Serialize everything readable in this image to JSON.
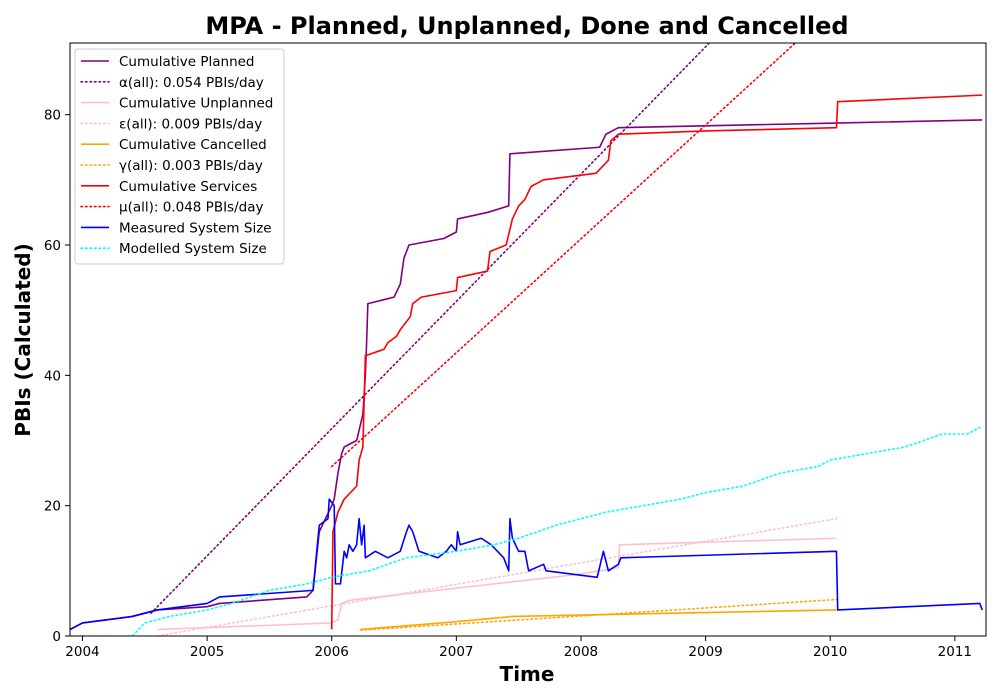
{
  "chart_data": {
    "type": "line",
    "title": "MPA - Planned, Unplanned, Done  and Cancelled",
    "xlabel": "Time",
    "ylabel": "PBIs (Calculated)",
    "xlim": [
      2003.9,
      2011.25
    ],
    "ylim": [
      0,
      91
    ],
    "x_ticks": [
      {
        "value": 2004,
        "label": "2004"
      },
      {
        "value": 2005,
        "label": "2005"
      },
      {
        "value": 2006,
        "label": "2006"
      },
      {
        "value": 2007,
        "label": "2007"
      },
      {
        "value": 2008,
        "label": "2008"
      },
      {
        "value": 2009,
        "label": "2009"
      },
      {
        "value": 2010,
        "label": "2010"
      },
      {
        "value": 2011,
        "label": "2011"
      }
    ],
    "y_ticks": [
      {
        "value": 0,
        "label": "0"
      },
      {
        "value": 20,
        "label": "20"
      },
      {
        "value": 40,
        "label": "40"
      },
      {
        "value": 60,
        "label": "60"
      },
      {
        "value": 80,
        "label": "80"
      }
    ],
    "grid": false,
    "legend_position": "top-left",
    "series": [
      {
        "name": "Cumulative Planned",
        "color": "#800080",
        "style": "solid",
        "points": [
          [
            2003.9,
            1
          ],
          [
            2004.0,
            2
          ],
          [
            2004.4,
            3
          ],
          [
            2004.6,
            4
          ],
          [
            2005.0,
            4.5
          ],
          [
            2005.1,
            5
          ],
          [
            2005.8,
            6
          ],
          [
            2005.85,
            7
          ],
          [
            2005.9,
            16
          ],
          [
            2005.95,
            18
          ],
          [
            2006.0,
            20
          ],
          [
            2006.02,
            21
          ],
          [
            2006.05,
            25
          ],
          [
            2006.08,
            28
          ],
          [
            2006.1,
            29
          ],
          [
            2006.2,
            30
          ],
          [
            2006.25,
            34
          ],
          [
            2006.27,
            40
          ],
          [
            2006.28,
            45
          ],
          [
            2006.29,
            51
          ],
          [
            2006.5,
            52
          ],
          [
            2006.55,
            54
          ],
          [
            2006.58,
            58
          ],
          [
            2006.62,
            60
          ],
          [
            2006.9,
            61
          ],
          [
            2007.0,
            62
          ],
          [
            2007.01,
            64
          ],
          [
            2007.25,
            65
          ],
          [
            2007.42,
            66
          ],
          [
            2007.43,
            74
          ],
          [
            2008.15,
            75
          ],
          [
            2008.2,
            77
          ],
          [
            2008.3,
            78
          ],
          [
            2010.0,
            78.7
          ],
          [
            2011.22,
            79.2
          ]
        ]
      },
      {
        "name": "α(all): 0.054 PBIs/day",
        "color": "#800080",
        "style": "dotted",
        "points": [
          [
            2004.55,
            3.5
          ],
          [
            2009.03,
            91
          ]
        ]
      },
      {
        "name": "Cumulative Unplanned",
        "color": "#ffc0cb",
        "style": "solid",
        "points": [
          [
            2004.6,
            1
          ],
          [
            2006.0,
            2
          ],
          [
            2006.05,
            2.5
          ],
          [
            2006.08,
            5
          ],
          [
            2006.15,
            5.5
          ],
          [
            2008.0,
            9.5
          ],
          [
            2008.3,
            10.5
          ],
          [
            2008.31,
            14
          ],
          [
            2010.05,
            15
          ]
        ]
      },
      {
        "name": "ε(all): 0.009 PBIs/day",
        "color": "#ffc0cb",
        "style": "dotted",
        "points": [
          [
            2004.6,
            0
          ],
          [
            2010.05,
            18
          ]
        ]
      },
      {
        "name": "Cumulative Cancelled",
        "color": "#ffa500",
        "style": "solid",
        "points": [
          [
            2006.23,
            1
          ],
          [
            2007.0,
            2.2
          ],
          [
            2007.45,
            3
          ],
          [
            2010.05,
            4
          ]
        ]
      },
      {
        "name": "γ(all): 0.003 PBIs/day",
        "color": "#ffa500",
        "style": "dotted",
        "points": [
          [
            2006.23,
            0.9
          ],
          [
            2010.05,
            5.6
          ]
        ]
      },
      {
        "name": "Cumulative Services",
        "color": "#ff0000",
        "style": "solid",
        "points": [
          [
            2006.0,
            1
          ],
          [
            2006.01,
            16
          ],
          [
            2006.05,
            19
          ],
          [
            2006.1,
            21
          ],
          [
            2006.2,
            23
          ],
          [
            2006.22,
            27
          ],
          [
            2006.25,
            29
          ],
          [
            2006.27,
            43
          ],
          [
            2006.42,
            44
          ],
          [
            2006.45,
            45
          ],
          [
            2006.52,
            46
          ],
          [
            2006.55,
            47
          ],
          [
            2006.63,
            49
          ],
          [
            2006.65,
            51
          ],
          [
            2006.72,
            52
          ],
          [
            2007.0,
            53
          ],
          [
            2007.01,
            55
          ],
          [
            2007.25,
            56
          ],
          [
            2007.27,
            59
          ],
          [
            2007.4,
            60
          ],
          [
            2007.45,
            64
          ],
          [
            2007.5,
            66
          ],
          [
            2007.55,
            67
          ],
          [
            2007.6,
            69
          ],
          [
            2007.7,
            70
          ],
          [
            2008.12,
            71
          ],
          [
            2008.22,
            73
          ],
          [
            2008.24,
            76
          ],
          [
            2008.3,
            77
          ],
          [
            2009.0,
            77.5
          ],
          [
            2010.05,
            78
          ],
          [
            2010.06,
            82
          ],
          [
            2011.22,
            83
          ]
        ]
      },
      {
        "name": "μ(all): 0.048 PBIs/day",
        "color": "#ff0000",
        "style": "dotted",
        "points": [
          [
            2006.0,
            26
          ],
          [
            2009.72,
            91
          ]
        ]
      },
      {
        "name": "Measured System Size",
        "color": "#0000ff",
        "style": "solid",
        "points": [
          [
            2003.9,
            1
          ],
          [
            2004.0,
            2
          ],
          [
            2004.4,
            3
          ],
          [
            2004.6,
            4
          ],
          [
            2005.0,
            5
          ],
          [
            2005.1,
            6
          ],
          [
            2005.85,
            7
          ],
          [
            2005.9,
            17
          ],
          [
            2005.97,
            18
          ],
          [
            2005.98,
            21
          ],
          [
            2006.02,
            20
          ],
          [
            2006.03,
            8
          ],
          [
            2006.07,
            8
          ],
          [
            2006.1,
            13
          ],
          [
            2006.12,
            12
          ],
          [
            2006.14,
            14
          ],
          [
            2006.17,
            13
          ],
          [
            2006.2,
            14
          ],
          [
            2006.22,
            18
          ],
          [
            2006.24,
            14
          ],
          [
            2006.26,
            17
          ],
          [
            2006.27,
            12
          ],
          [
            2006.35,
            13
          ],
          [
            2006.45,
            12
          ],
          [
            2006.55,
            13
          ],
          [
            2006.6,
            16
          ],
          [
            2006.62,
            17
          ],
          [
            2006.65,
            16
          ],
          [
            2006.7,
            13
          ],
          [
            2006.85,
            12
          ],
          [
            2006.92,
            13
          ],
          [
            2006.96,
            14
          ],
          [
            2007.0,
            13
          ],
          [
            2007.01,
            16
          ],
          [
            2007.03,
            14
          ],
          [
            2007.2,
            15
          ],
          [
            2007.28,
            14
          ],
          [
            2007.38,
            12
          ],
          [
            2007.42,
            10
          ],
          [
            2007.43,
            18
          ],
          [
            2007.45,
            15
          ],
          [
            2007.5,
            13
          ],
          [
            2007.55,
            13
          ],
          [
            2007.58,
            10
          ],
          [
            2007.7,
            11
          ],
          [
            2007.72,
            10
          ],
          [
            2008.13,
            9
          ],
          [
            2008.18,
            13
          ],
          [
            2008.22,
            10
          ],
          [
            2008.3,
            11
          ],
          [
            2008.32,
            12
          ],
          [
            2010.05,
            13
          ],
          [
            2010.06,
            4
          ],
          [
            2011.2,
            5
          ],
          [
            2011.22,
            4
          ]
        ]
      },
      {
        "name": "Modelled System Size",
        "color": "#00ffff",
        "style": "dotted",
        "points": [
          [
            2003.9,
            0
          ],
          [
            2004.4,
            0
          ],
          [
            2004.5,
            2
          ],
          [
            2004.7,
            3
          ],
          [
            2005.0,
            4
          ],
          [
            2005.2,
            5
          ],
          [
            2005.5,
            7
          ],
          [
            2005.8,
            8
          ],
          [
            2006.0,
            9
          ],
          [
            2006.3,
            10
          ],
          [
            2006.6,
            12
          ],
          [
            2007.0,
            13
          ],
          [
            2007.3,
            14
          ],
          [
            2007.5,
            15
          ],
          [
            2007.8,
            17
          ],
          [
            2008.0,
            18
          ],
          [
            2008.2,
            19
          ],
          [
            2008.5,
            20
          ],
          [
            2008.8,
            21
          ],
          [
            2009.0,
            22
          ],
          [
            2009.3,
            23
          ],
          [
            2009.6,
            25
          ],
          [
            2009.9,
            26
          ],
          [
            2010.0,
            27
          ],
          [
            2010.3,
            28
          ],
          [
            2010.6,
            29
          ],
          [
            2010.9,
            31
          ],
          [
            2011.1,
            31
          ],
          [
            2011.2,
            32
          ]
        ]
      }
    ]
  }
}
